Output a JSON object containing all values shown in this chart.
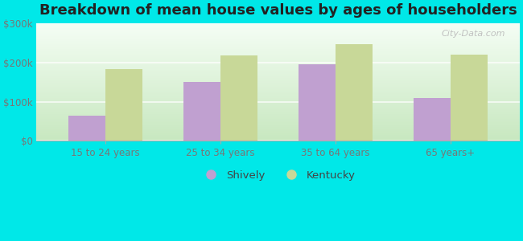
{
  "title": "Breakdown of mean house values by ages of householders",
  "categories": [
    "15 to 24 years",
    "25 to 34 years",
    "35 to 64 years",
    "65 years+"
  ],
  "shively_values": [
    65000,
    150000,
    195000,
    110000
  ],
  "kentucky_values": [
    183000,
    218000,
    248000,
    220000
  ],
  "shively_color": "#c0a0d0",
  "kentucky_color": "#c8d898",
  "ylim": [
    0,
    300000
  ],
  "yticks": [
    0,
    100000,
    200000,
    300000
  ],
  "ytick_labels": [
    "$0",
    "$100k",
    "$200k",
    "$300k"
  ],
  "figure_bg_color": "#00e8e8",
  "plot_bg_color": "#eaf5e8",
  "title_fontsize": 13,
  "legend_labels": [
    "Shively",
    "Kentucky"
  ],
  "bar_width": 0.32,
  "watermark": "City-Data.com",
  "tick_label_color": "#777777",
  "grid_color": "#d0e8d0"
}
